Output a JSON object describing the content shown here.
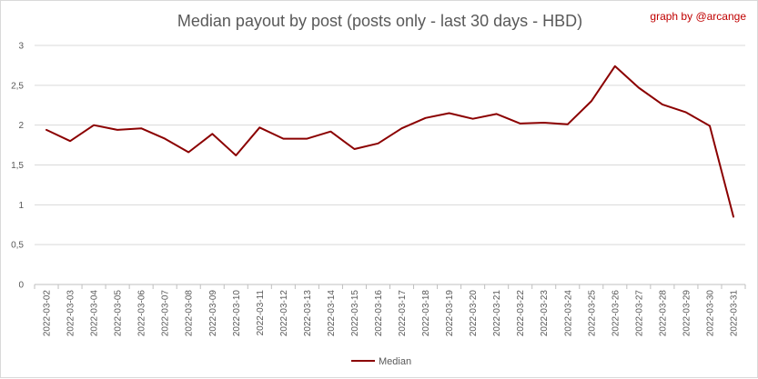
{
  "chart_data": {
    "type": "line",
    "title": "Median payout by post (posts only - last 30 days - HBD)",
    "credit": "graph by @arcange",
    "xlabel": "",
    "ylabel": "",
    "ylim": [
      0,
      3
    ],
    "yticks": [
      0,
      0.5,
      1,
      1.5,
      2,
      2.5,
      3
    ],
    "ytick_labels": [
      "0",
      "0,5",
      "1",
      "1,5",
      "2",
      "2,5",
      "3"
    ],
    "grid": true,
    "legend": "bottom",
    "categories": [
      "2022-03-02",
      "2022-03-03",
      "2022-03-04",
      "2022-03-05",
      "2022-03-06",
      "2022-03-07",
      "2022-03-08",
      "2022-03-09",
      "2022-03-10",
      "2022-03-11",
      "2022-03-12",
      "2022-03-13",
      "2022-03-14",
      "2022-03-15",
      "2022-03-16",
      "2022-03-17",
      "2022-03-18",
      "2022-03-19",
      "2022-03-20",
      "2022-03-21",
      "2022-03-22",
      "2022-03-23",
      "2022-03-24",
      "2022-03-25",
      "2022-03-26",
      "2022-03-27",
      "2022-03-28",
      "2022-03-29",
      "2022-03-30",
      "2022-03-31"
    ],
    "series": [
      {
        "name": "Median",
        "color": "#8b0000",
        "values": [
          1.94,
          1.8,
          2.0,
          1.94,
          1.96,
          1.83,
          1.66,
          1.89,
          1.62,
          1.97,
          1.83,
          1.83,
          1.92,
          1.7,
          1.77,
          1.96,
          2.09,
          2.15,
          2.08,
          2.14,
          2.02,
          2.03,
          2.01,
          2.3,
          2.74,
          2.47,
          2.26,
          2.16,
          1.99,
          0.85
        ]
      }
    ]
  }
}
